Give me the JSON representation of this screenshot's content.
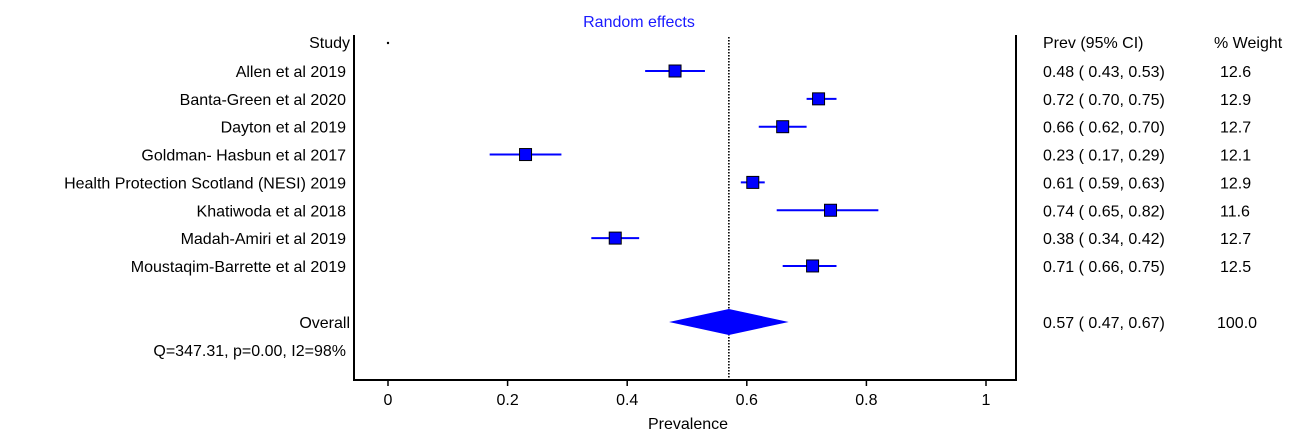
{
  "chart_data": {
    "type": "forest",
    "title": "Random effects",
    "xlabel": "Prevalence",
    "xlim": [
      -0.05,
      1.05
    ],
    "xticks": [
      0,
      0.2,
      0.4,
      0.6,
      0.8,
      1
    ],
    "xtick_labels": [
      "0",
      "0.2",
      "0.4",
      "0.6",
      "0.8",
      "1"
    ],
    "header": {
      "study": "Study",
      "estimate": "Prev (95% CI)",
      "weight": "% Weight"
    },
    "studies": [
      {
        "name": "Allen et al 2019",
        "est": 0.48,
        "lo": 0.43,
        "hi": 0.53,
        "ci_text": "0.48  (  0.43,  0.53)",
        "weight": "12.6"
      },
      {
        "name": "Banta-Green et al 2020",
        "est": 0.72,
        "lo": 0.7,
        "hi": 0.75,
        "ci_text": "0.72  (  0.70,  0.75)",
        "weight": "12.9"
      },
      {
        "name": "Dayton et al 2019",
        "est": 0.66,
        "lo": 0.62,
        "hi": 0.7,
        "ci_text": "0.66  (  0.62,  0.70)",
        "weight": "12.7"
      },
      {
        "name": "Goldman- Hasbun et al 2017",
        "est": 0.23,
        "lo": 0.17,
        "hi": 0.29,
        "ci_text": "0.23  (  0.17,  0.29)",
        "weight": "12.1"
      },
      {
        "name": "Health Protection Scotland (NESI) 2019",
        "est": 0.61,
        "lo": 0.59,
        "hi": 0.63,
        "ci_text": "0.61  (  0.59,  0.63)",
        "weight": "12.9"
      },
      {
        "name": "Khatiwoda et al 2018",
        "est": 0.74,
        "lo": 0.65,
        "hi": 0.82,
        "ci_text": "0.74  (  0.65,  0.82)",
        "weight": "11.6"
      },
      {
        "name": "Madah-Amiri et al 2019",
        "est": 0.38,
        "lo": 0.34,
        "hi": 0.42,
        "ci_text": "0.38  (  0.34,  0.42)",
        "weight": "12.7"
      },
      {
        "name": "Moustaqim-Barrette et al 2019",
        "est": 0.71,
        "lo": 0.66,
        "hi": 0.75,
        "ci_text": "0.71  (  0.66,  0.75)",
        "weight": "12.5"
      }
    ],
    "overall": {
      "name": "Overall",
      "est": 0.57,
      "lo": 0.47,
      "hi": 0.67,
      "ci_text": "0.57  (  0.47,  0.67)",
      "weight": "100.0"
    },
    "heterogeneity": "Q=347.31, p=0.00, I2=98%",
    "colors": {
      "marker": "#0000ff",
      "ci_line": "#0000ff",
      "title": "#1a1aff",
      "axis": "#000000"
    }
  }
}
